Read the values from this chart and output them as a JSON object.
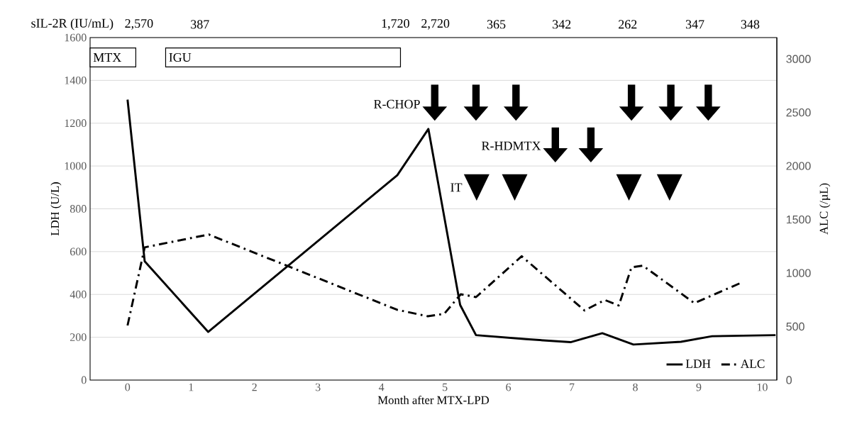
{
  "chart_data": {
    "type": "line",
    "xlabel": "Month after MTX-LPD",
    "ylabel": "LDH (U/L)",
    "y2label": "ALC (/µL)",
    "xlim": [
      -0.59,
      10.23
    ],
    "xticks": [
      0,
      1,
      2,
      3,
      4,
      5,
      6,
      7,
      8,
      9,
      10
    ],
    "ylim": [
      0,
      1600
    ],
    "yticks": [
      0,
      200,
      400,
      600,
      800,
      1000,
      1200,
      1400,
      1600
    ],
    "y2lim": [
      0,
      3200
    ],
    "y2ticks": [
      0,
      500,
      1000,
      1500,
      2000,
      2500,
      3000
    ],
    "grid": "y",
    "legend": "bottom right",
    "series": [
      {
        "name": "LDH",
        "type": "line",
        "color": "#000000",
        "line_style": "solid",
        "x": [
          0,
          0.27,
          1.27,
          4.25,
          4.74,
          5.24,
          5.49,
          6.28,
          6.98,
          7.48,
          7.97,
          8.72,
          9.21,
          10.21
        ],
        "values": [
          1310,
          555,
          225,
          957,
          1173,
          351,
          210,
          191,
          177,
          219,
          166,
          179,
          205,
          210
        ]
      },
      {
        "name": "ALC",
        "type": "line",
        "axis": "y2",
        "color": "#000000",
        "line_style": "dashdot",
        "x": [
          0,
          0.27,
          1.28,
          4.25,
          4.73,
          4.99,
          5.25,
          5.49,
          6.21,
          7.2,
          7.52,
          7.74,
          7.94,
          8.12,
          8.93,
          9.69
        ],
        "values": [
          510,
          1240,
          1360,
          656,
          596,
          619,
          802,
          775,
          1157,
          650,
          748,
          697,
          1053,
          1069,
          719,
          915
        ]
      },
      {
        "name": "R-CHOP",
        "type": "scatter",
        "marker": "triangle",
        "color": "#000000",
        "x": [
          4.84,
          5.49,
          6.12,
          7.94,
          8.56,
          9.15
        ],
        "values": [
          1245,
          1245,
          1245,
          1245,
          1245,
          1245
        ],
        "errors": [
          [
            1245,
            1380
          ],
          [
            1245,
            1380
          ],
          [
            1245,
            1380
          ],
          [
            1245,
            1380
          ],
          [
            1245,
            1380
          ],
          [
            1245,
            1380
          ]
        ]
      },
      {
        "name": "R-HDMTX",
        "type": "scatter",
        "marker": "triangle",
        "color": "#000000",
        "x": [
          6.74,
          7.3
        ],
        "values": [
          1050,
          1050
        ],
        "errors": [
          [
            1050,
            1180
          ],
          [
            1050,
            1180
          ]
        ]
      },
      {
        "name": "IT",
        "type": "scatter",
        "marker": "triangle",
        "color": "#000000",
        "x": [
          5.5,
          6.1,
          7.9,
          8.54
        ],
        "values": [
          900,
          900,
          900,
          900
        ]
      }
    ],
    "bands": [
      {
        "axis": "x",
        "from": -0.59,
        "to": 0.13,
        "label": "MTX",
        "color": "#ffffff"
      },
      {
        "axis": "x",
        "from": 0.6,
        "to": 4.3,
        "label": "IGU",
        "color": "#ffffff"
      }
    ],
    "annotations": [
      "sIL-2R (IU/mL)",
      "2,570",
      "387",
      "1,720",
      "2,720",
      "365",
      "342",
      "262",
      "347",
      "348"
    ]
  }
}
